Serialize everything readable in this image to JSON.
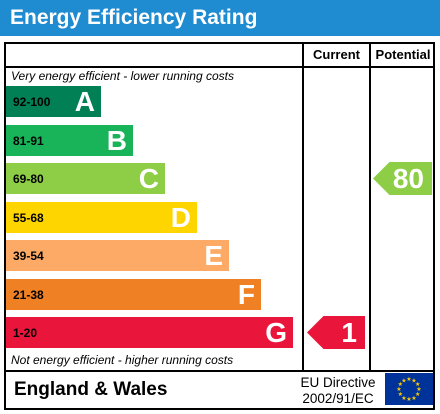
{
  "title": "Energy Efficiency Rating",
  "columns": {
    "current": "Current",
    "potential": "Potential"
  },
  "notes": {
    "top": "Very energy efficient - lower running costs",
    "bottom": "Not energy efficient - higher running costs"
  },
  "footer": {
    "region": "England & Wales",
    "directive_line1": "EU Directive",
    "directive_line2": "2002/91/EC"
  },
  "colors": {
    "title_bar": "#1f8bd0",
    "A": "#008054",
    "B": "#19b459",
    "C": "#8dce46",
    "D": "#ffd500",
    "E": "#fcaa65",
    "F": "#ef8023",
    "G": "#e9153b",
    "eu_flag": "#003399",
    "eu_stars": "#ffcc00"
  },
  "chart_data": {
    "type": "bar",
    "title": "Energy Efficiency Rating",
    "bands": [
      {
        "letter": "A",
        "range": "92-100"
      },
      {
        "letter": "B",
        "range": "81-91"
      },
      {
        "letter": "C",
        "range": "69-80"
      },
      {
        "letter": "D",
        "range": "55-68"
      },
      {
        "letter": "E",
        "range": "39-54"
      },
      {
        "letter": "F",
        "range": "21-38"
      },
      {
        "letter": "G",
        "range": "1-20"
      }
    ],
    "current": {
      "value": "1",
      "band": "G"
    },
    "potential": {
      "value": "80",
      "band": "C"
    }
  }
}
